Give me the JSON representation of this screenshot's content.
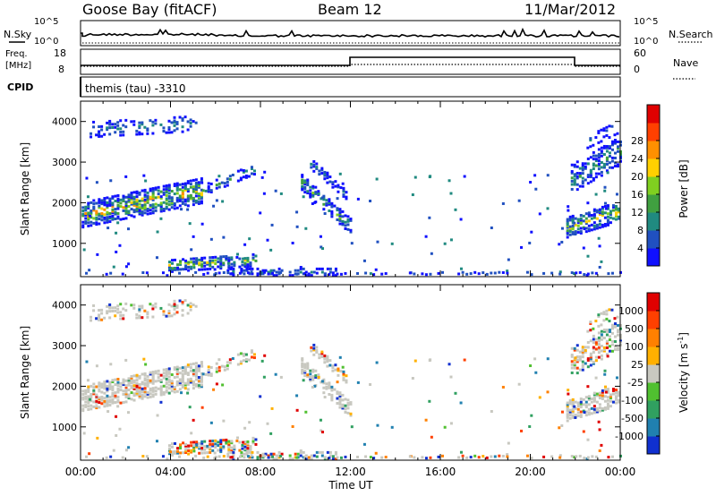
{
  "header": {
    "station": "Goose Bay (fitACF)",
    "beam": "Beam 12",
    "date": "11/Mar/2012"
  },
  "status_panels": {
    "nsky_label": "N.Sky",
    "nsearch_label": "N.Search",
    "noise_ticks": [
      "10^5",
      "10^0"
    ],
    "freq_label_line1": "Freq.",
    "freq_label_line2": "[MHz]",
    "freq_ticks": [
      "18",
      "8"
    ],
    "nave_label": "Nave",
    "nave_ticks": [
      "60",
      "0"
    ],
    "cpid_label": "CPID",
    "cpid_value": "themis (tau) -3310"
  },
  "chart_data": [
    {
      "type": "heatmap",
      "title": "Power",
      "ylabel": "Slant Range [km]",
      "yticks": [
        "1000",
        "2000",
        "3000",
        "4000"
      ],
      "ylim": [
        180,
        4500
      ],
      "xlim": [
        0,
        24
      ],
      "colorbar": {
        "label": "Power [dB]",
        "ticks": [
          "4",
          "8",
          "12",
          "16",
          "20",
          "24",
          "28"
        ],
        "colors": [
          "#1010ff",
          "#2050c0",
          "#208a80",
          "#40a040",
          "#80d020",
          "#ffd000",
          "#ff9000",
          "#ff4000",
          "#e00000"
        ]
      },
      "echo_regions": [
        {
          "t0": 0.0,
          "t1": 5.5,
          "r0": 1500,
          "r1": 2400,
          "level": "high"
        },
        {
          "t0": 0.3,
          "t1": 5.2,
          "r0": 3600,
          "r1": 4200,
          "level": "low"
        },
        {
          "t0": 4.0,
          "t1": 8.0,
          "r0": 300,
          "r1": 700,
          "level": "mid"
        },
        {
          "t0": 9.8,
          "t1": 12.0,
          "r0": 1200,
          "r1": 3000,
          "level": "mid"
        },
        {
          "t0": 21.6,
          "t1": 24.0,
          "r0": 1200,
          "r1": 3900,
          "level": "high"
        }
      ]
    },
    {
      "type": "heatmap",
      "title": "Velocity",
      "ylabel": "Slant Range [km]",
      "yticks": [
        "1000",
        "2000",
        "3000",
        "4000"
      ],
      "ylim": [
        180,
        4500
      ],
      "xlim": [
        0,
        24
      ],
      "xlabel": "Time UT",
      "xticks": [
        "00:00",
        "04:00",
        "08:00",
        "12:00",
        "16:00",
        "20:00",
        "00:00"
      ],
      "colorbar": {
        "label": "Velocity [m s",
        "label_superscript": "-1",
        "label_close": "]",
        "ticks": [
          "1000",
          "500",
          "100",
          "25",
          "-25",
          "-100",
          "-500",
          "-1000"
        ],
        "colors": [
          "#1030d0",
          "#2080b0",
          "#30a060",
          "#50c030",
          "#c8c8c0",
          "#ffb000",
          "#ff8000",
          "#ff4000",
          "#e00000"
        ]
      }
    }
  ]
}
